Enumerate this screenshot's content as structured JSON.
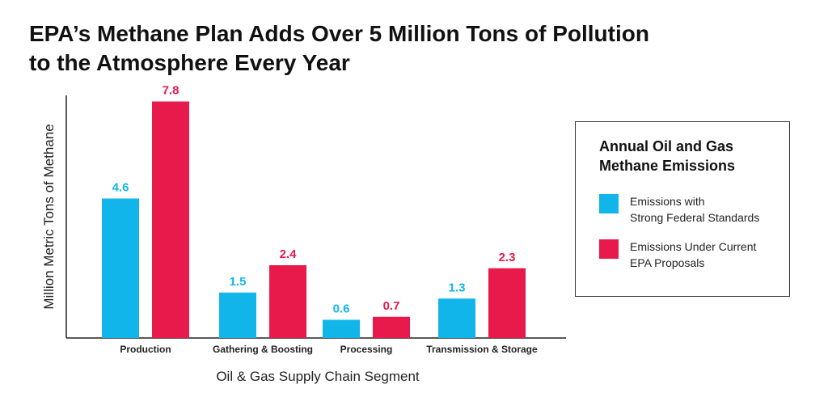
{
  "title_lines": [
    "EPA’s Methane Plan Adds Over 5 Million Tons of Pollution",
    "to the Atmosphere Every Year"
  ],
  "legend": {
    "title_lines": [
      "Annual Oil and Gas",
      "Methane Emissions"
    ],
    "items": [
      {
        "lines": [
          "Emissions with",
          "Strong Federal Standards"
        ],
        "color": "#12b5ea"
      },
      {
        "lines": [
          "Emissions Under Current",
          "EPA Proposals"
        ],
        "color": "#e8194b"
      }
    ]
  },
  "chart_data": {
    "type": "bar",
    "categories": [
      "Production",
      "Gathering & Boosting",
      "Processing",
      "Transmission & Storage"
    ],
    "series": [
      {
        "name": "Emissions with Strong Federal Standards",
        "values": [
          4.6,
          1.5,
          0.6,
          1.3
        ],
        "color": "#12b5ea"
      },
      {
        "name": "Emissions Under Current EPA Proposals",
        "values": [
          7.8,
          2.4,
          0.7,
          2.3
        ],
        "color": "#e8194b"
      }
    ],
    "data_labels": [
      [
        "4.6",
        "1.5",
        "0.6",
        "1.3"
      ],
      [
        "7.8",
        "2.4",
        "0.7",
        "2.3"
      ]
    ],
    "xlabel": "Oil & Gas Supply Chain Segment",
    "ylabel": "Million Metric Tons of Methane",
    "ylim": [
      0,
      8
    ],
    "grid": false,
    "legend_position": "right"
  }
}
